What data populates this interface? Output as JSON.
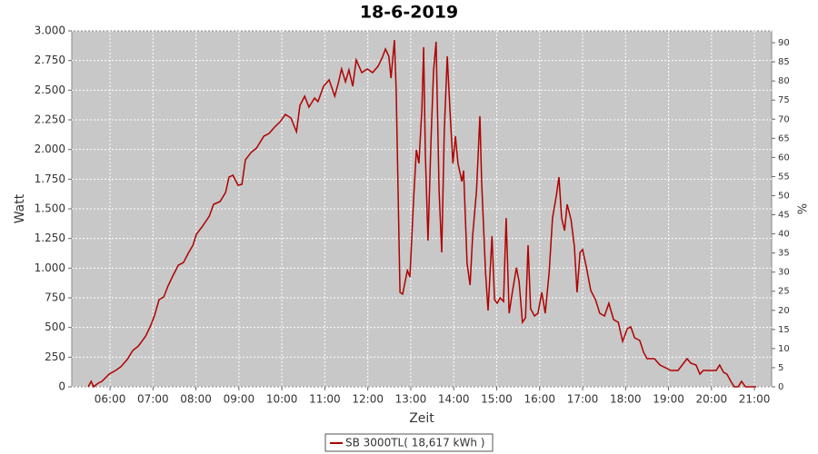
{
  "chart_data": {
    "type": "line",
    "title": "18-6-2019",
    "ylabel": "Watt",
    "y2label": "%",
    "xlabel": "Zeit",
    "xlim": [
      5.11,
      21.4
    ],
    "xticks": [
      {
        "value": 6,
        "label": "06:00"
      },
      {
        "value": 7,
        "label": "07:00"
      },
      {
        "value": 8,
        "label": "08:00"
      },
      {
        "value": 9,
        "label": "09:00"
      },
      {
        "value": 10,
        "label": "10:00"
      },
      {
        "value": 11,
        "label": "11:00"
      },
      {
        "value": 12,
        "label": "12:00"
      },
      {
        "value": 13,
        "label": "13:00"
      },
      {
        "value": 14,
        "label": "14:00"
      },
      {
        "value": 15,
        "label": "15:00"
      },
      {
        "value": 16,
        "label": "16:00"
      },
      {
        "value": 17,
        "label": "17:00"
      },
      {
        "value": 18,
        "label": "18:00"
      },
      {
        "value": 19,
        "label": "19:00"
      },
      {
        "value": 20,
        "label": "20:00"
      },
      {
        "value": 21,
        "label": "21:00"
      }
    ],
    "ylim": [
      0,
      3000
    ],
    "yticks": [
      0,
      250,
      500,
      750,
      {
        "value": 1000,
        "label": "1.000"
      },
      {
        "value": 1250,
        "label": "1.250"
      },
      {
        "value": 1500,
        "label": "1.500"
      },
      {
        "value": 1750,
        "label": "1.750"
      },
      {
        "value": 2000,
        "label": "2.000"
      },
      {
        "value": 2250,
        "label": "2.250"
      },
      {
        "value": 2500,
        "label": "2.500"
      },
      {
        "value": 2750,
        "label": "2.750"
      },
      {
        "value": 3000,
        "label": "3.000"
      }
    ],
    "y2lim": [
      0,
      93.1
    ],
    "y2ticks": [
      0,
      5,
      10,
      15,
      20,
      25,
      30,
      35,
      40,
      45,
      50,
      55,
      60,
      65,
      70,
      75,
      80,
      85,
      90
    ],
    "grid": true,
    "x": [
      5.49,
      5.56,
      5.62,
      5.72,
      5.81,
      5.98,
      6.13,
      6.25,
      6.4,
      6.53,
      6.66,
      6.83,
      6.95,
      7.04,
      7.14,
      7.25,
      7.35,
      7.46,
      7.59,
      7.71,
      7.82,
      7.93,
      8.01,
      8.14,
      8.31,
      8.41,
      8.56,
      8.69,
      8.77,
      8.86,
      8.98,
      9.07,
      9.15,
      9.28,
      9.41,
      9.58,
      9.7,
      9.83,
      9.96,
      10.08,
      10.21,
      10.34,
      10.42,
      10.53,
      10.63,
      10.76,
      10.84,
      10.97,
      11.1,
      11.23,
      11.31,
      11.39,
      11.48,
      11.56,
      11.65,
      11.73,
      11.86,
      11.99,
      12.11,
      12.24,
      12.33,
      12.41,
      12.49,
      12.54,
      12.62,
      12.66,
      12.75,
      12.81,
      12.92,
      12.98,
      13.07,
      13.13,
      13.19,
      13.26,
      13.3,
      13.34,
      13.4,
      13.47,
      13.53,
      13.59,
      13.66,
      13.72,
      13.78,
      13.85,
      13.91,
      13.98,
      14.04,
      14.1,
      14.19,
      14.23,
      14.31,
      14.38,
      14.44,
      14.53,
      14.61,
      14.65,
      14.74,
      14.8,
      14.89,
      14.95,
      15.01,
      15.08,
      15.16,
      15.22,
      15.29,
      15.37,
      15.46,
      15.52,
      15.6,
      15.67,
      15.73,
      15.79,
      15.88,
      15.96,
      16.05,
      16.13,
      16.22,
      16.3,
      16.39,
      16.45,
      16.51,
      16.58,
      16.64,
      16.73,
      16.81,
      16.87,
      16.94,
      17.0,
      17.09,
      17.19,
      17.3,
      17.4,
      17.51,
      17.61,
      17.72,
      17.83,
      17.93,
      18.04,
      18.12,
      18.21,
      18.33,
      18.42,
      18.5,
      18.67,
      18.8,
      18.93,
      19.05,
      19.22,
      19.35,
      19.43,
      19.52,
      19.64,
      19.73,
      19.81,
      19.94,
      20.11,
      20.19,
      20.28,
      20.36,
      20.45,
      20.53,
      20.62,
      20.7,
      20.79,
      21.04
    ],
    "series": [
      {
        "name": "SB 3000TL( 18,617 kWh )",
        "color": "#b00000",
        "values": [
          0,
          46,
          0,
          30,
          46,
          107,
          138,
          168,
          230,
          306,
          344,
          428,
          520,
          605,
          735,
          758,
          850,
          934,
          1025,
          1048,
          1125,
          1194,
          1286,
          1347,
          1439,
          1538,
          1561,
          1638,
          1768,
          1783,
          1699,
          1707,
          1913,
          1974,
          2013,
          2112,
          2135,
          2189,
          2235,
          2296,
          2265,
          2150,
          2372,
          2449,
          2357,
          2434,
          2403,
          2533,
          2587,
          2449,
          2556,
          2679,
          2571,
          2671,
          2533,
          2755,
          2648,
          2679,
          2648,
          2702,
          2770,
          2847,
          2786,
          2602,
          2923,
          2495,
          796,
          781,
          980,
          926,
          1615,
          1997,
          1883,
          2342,
          2862,
          1959,
          1232,
          2074,
          2663,
          2908,
          1653,
          1133,
          2150,
          2786,
          2342,
          1883,
          2112,
          1883,
          1730,
          1822,
          1041,
          857,
          1270,
          1653,
          2281,
          1730,
          964,
          643,
          1270,
          735,
          704,
          750,
          719,
          1423,
          620,
          811,
          1003,
          888,
          543,
          582,
          1194,
          658,
          597,
          620,
          796,
          620,
          964,
          1423,
          1615,
          1768,
          1423,
          1316,
          1538,
          1408,
          1179,
          796,
          1133,
          1156,
          1003,
          811,
          735,
          620,
          597,
          704,
          566,
          543,
          383,
          490,
          505,
          413,
          390,
          291,
          237,
          237,
          184,
          161,
          138,
          138,
          199,
          237,
          199,
          184,
          107,
          138,
          138,
          138,
          184,
          122,
          107,
          46,
          0,
          0,
          46,
          0,
          0
        ]
      }
    ]
  }
}
